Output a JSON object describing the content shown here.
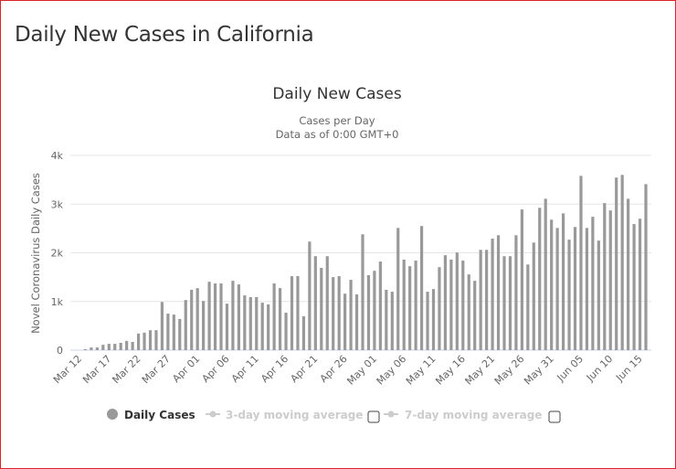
{
  "page_title": "Daily New Cases in California",
  "chart_data": {
    "type": "bar",
    "title": "Daily New Cases",
    "subtitle": [
      "Cases per Day",
      "Data as of 0:00 GMT+0"
    ],
    "ylabel": "Novel Coronavirus Daily Cases",
    "xlabel": "",
    "ylim": [
      0,
      4000
    ],
    "yticks": [
      0,
      1000,
      2000,
      3000,
      4000
    ],
    "ytick_labels": [
      "0",
      "1k",
      "2k",
      "3k",
      "4k"
    ],
    "grid": true,
    "bar_color": "#999999",
    "x": [
      "Mar 12",
      "Mar 13",
      "Mar 14",
      "Mar 15",
      "Mar 16",
      "Mar 17",
      "Mar 18",
      "Mar 19",
      "Mar 20",
      "Mar 21",
      "Mar 22",
      "Mar 23",
      "Mar 24",
      "Mar 25",
      "Mar 26",
      "Mar 27",
      "Mar 28",
      "Mar 29",
      "Mar 30",
      "Mar 31",
      "Apr 01",
      "Apr 02",
      "Apr 03",
      "Apr 04",
      "Apr 05",
      "Apr 06",
      "Apr 07",
      "Apr 08",
      "Apr 09",
      "Apr 10",
      "Apr 11",
      "Apr 12",
      "Apr 13",
      "Apr 14",
      "Apr 15",
      "Apr 16",
      "Apr 17",
      "Apr 18",
      "Apr 19",
      "Apr 20",
      "Apr 21",
      "Apr 22",
      "Apr 23",
      "Apr 24",
      "Apr 25",
      "Apr 26",
      "Apr 27",
      "Apr 28",
      "Apr 29",
      "Apr 30",
      "May 01",
      "May 02",
      "May 03",
      "May 04",
      "May 05",
      "May 06",
      "May 07",
      "May 08",
      "May 09",
      "May 10",
      "May 11",
      "May 12",
      "May 13",
      "May 14",
      "May 15",
      "May 16",
      "May 17",
      "May 18",
      "May 19",
      "May 20",
      "May 21",
      "May 22",
      "May 23",
      "May 24",
      "May 25",
      "May 26",
      "May 27",
      "May 28",
      "May 29",
      "May 30",
      "May 31",
      "Jun 01",
      "Jun 02",
      "Jun 03",
      "Jun 04",
      "Jun 05",
      "Jun 06",
      "Jun 07",
      "Jun 08",
      "Jun 09",
      "Jun 10",
      "Jun 11",
      "Jun 12",
      "Jun 13",
      "Jun 14",
      "Jun 15",
      "Jun 16"
    ],
    "xtick_labels": [
      "Mar 12",
      "Mar 17",
      "Mar 22",
      "Mar 27",
      "Apr 01",
      "Apr 06",
      "Apr 11",
      "Apr 16",
      "Apr 21",
      "Apr 26",
      "May 01",
      "May 06",
      "May 11",
      "May 16",
      "May 21",
      "May 26",
      "May 31",
      "Jun 05",
      "Jun 10",
      "Jun 15"
    ],
    "series": [
      {
        "name": "Daily Cases",
        "values": [
          0,
          20,
          55,
          55,
          110,
          130,
          130,
          150,
          190,
          170,
          340,
          360,
          410,
          410,
          990,
          750,
          730,
          640,
          1030,
          1240,
          1275,
          1010,
          1405,
          1370,
          1370,
          955,
          1425,
          1350,
          1125,
          1090,
          1090,
          975,
          940,
          1370,
          1275,
          770,
          1520,
          1520,
          695,
          2230,
          1930,
          1690,
          1930,
          1500,
          1520,
          1160,
          1445,
          1145,
          2380,
          1540,
          1630,
          1820,
          1240,
          1200,
          2510,
          1860,
          1725,
          1840,
          2550,
          1200,
          1255,
          1705,
          1950,
          1860,
          2005,
          1840,
          1555,
          1425,
          2060,
          2060,
          2290,
          2360,
          1930,
          1930,
          2360,
          2890,
          1760,
          2210,
          2925,
          3110,
          2680,
          2510,
          2810,
          2270,
          2530,
          3580,
          2510,
          2740,
          2250,
          3020,
          2870,
          3545,
          3600,
          3110,
          2590,
          2700,
          3410
        ]
      }
    ],
    "legend": {
      "position": "bottom",
      "items": [
        {
          "label": "Daily Cases",
          "active": true,
          "color": "#999999",
          "icon": "circle-icon"
        },
        {
          "label": "3-day moving average",
          "active": false,
          "color": "#cccccc",
          "icon": "line-marker-icon",
          "checked": false
        },
        {
          "label": "7-day moving average",
          "active": false,
          "color": "#cccccc",
          "icon": "line-marker-icon",
          "checked": false
        }
      ]
    }
  }
}
